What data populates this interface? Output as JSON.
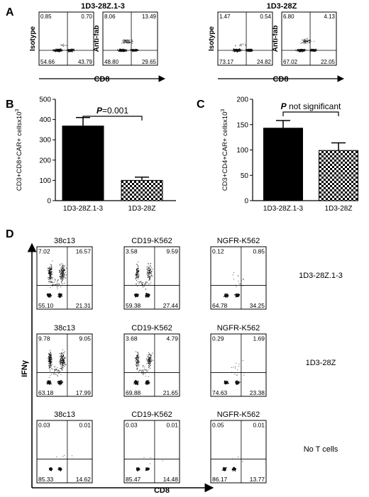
{
  "panel_labels": {
    "a": "A",
    "b": "B",
    "c": "C",
    "d": "D"
  },
  "panel_a": {
    "groups": [
      {
        "title": "1D3-28Z.1-3",
        "plots": [
          {
            "ylabel": "Isotype",
            "q": [
              "0.85",
              "0.70",
              "54.66",
              "43.79"
            ]
          },
          {
            "ylabel": "Anti-fab",
            "q": [
              "8.06",
              "13.49",
              "48.80",
              "29.65"
            ]
          }
        ],
        "xlabel": "CD8"
      },
      {
        "title": "1D3-28Z",
        "plots": [
          {
            "ylabel": "Isotype",
            "q": [
              "1.47",
              "0.54",
              "73.17",
              "24.82"
            ]
          },
          {
            "ylabel": "Anti-fab",
            "q": [
              "6.80",
              "4.13",
              "67.02",
              "22.05"
            ]
          }
        ],
        "xlabel": "CD8"
      }
    ]
  },
  "chart_data": [
    {
      "type": "bar",
      "panel": "B",
      "categories": [
        "1D3-28Z.1-3",
        "1D3-28Z"
      ],
      "values": [
        368,
        100
      ],
      "errors": [
        42,
        16
      ],
      "fills": [
        "solid",
        "checkered"
      ],
      "ylabel": "CD3+CD8+CAR+ cellsx10",
      "ylabel_sup": "3",
      "ylim": [
        0,
        500
      ],
      "yticks": [
        "0",
        "100",
        "200",
        "300",
        "400",
        "500"
      ],
      "annotation_italic": "P",
      "annotation_rest": "=0.001"
    },
    {
      "type": "bar",
      "panel": "C",
      "categories": [
        "1D3-28Z.1-3",
        "1D3-28Z"
      ],
      "values": [
        143,
        99
      ],
      "errors": [
        15,
        15
      ],
      "fills": [
        "solid",
        "checkered"
      ],
      "ylabel": "CD3+CD4+CAR+ cellsx10",
      "ylabel_sup": "3",
      "ylim": [
        0,
        200
      ],
      "yticks": [
        "0",
        "50",
        "100",
        "150",
        "200"
      ],
      "annotation_italic": "P",
      "annotation_rest": " not significant"
    }
  ],
  "panel_d": {
    "ylabel": "IFNγ",
    "xlabel": "CD8",
    "rows": [
      {
        "label": "1D3-28Z.1-3",
        "plots": [
          {
            "title": "38c13",
            "q": [
              "7.02",
              "16.57",
              "55.10",
              "21.31"
            ]
          },
          {
            "title": "CD19-K562",
            "q": [
              "3.58",
              "9.59",
              "59.38",
              "27.44"
            ]
          },
          {
            "title": "NGFR-K562",
            "q": [
              "0.12",
              "0.85",
              "64.78",
              "34.25"
            ]
          }
        ]
      },
      {
        "label": "1D3-28Z",
        "plots": [
          {
            "title": "38c13",
            "q": [
              "9.78",
              "9.05",
              "63.18",
              "17.99"
            ]
          },
          {
            "title": "CD19-K562",
            "q": [
              "3.68",
              "4.79",
              "69.88",
              "21.65"
            ]
          },
          {
            "title": "NGFR-K562",
            "q": [
              "0.29",
              "1.69",
              "74.63",
              "23.38"
            ]
          }
        ]
      },
      {
        "label": "No T cells",
        "plots": [
          {
            "title": "38c13",
            "q": [
              "0.03",
              "0.01",
              "85.33",
              "14.62"
            ]
          },
          {
            "title": "CD19-K562",
            "q": [
              "0.03",
              "0.01",
              "85.47",
              "14.48"
            ]
          },
          {
            "title": "NGFR-K562",
            "q": [
              "0.05",
              "0.01",
              "86.17",
              "13.77"
            ]
          }
        ]
      }
    ]
  }
}
